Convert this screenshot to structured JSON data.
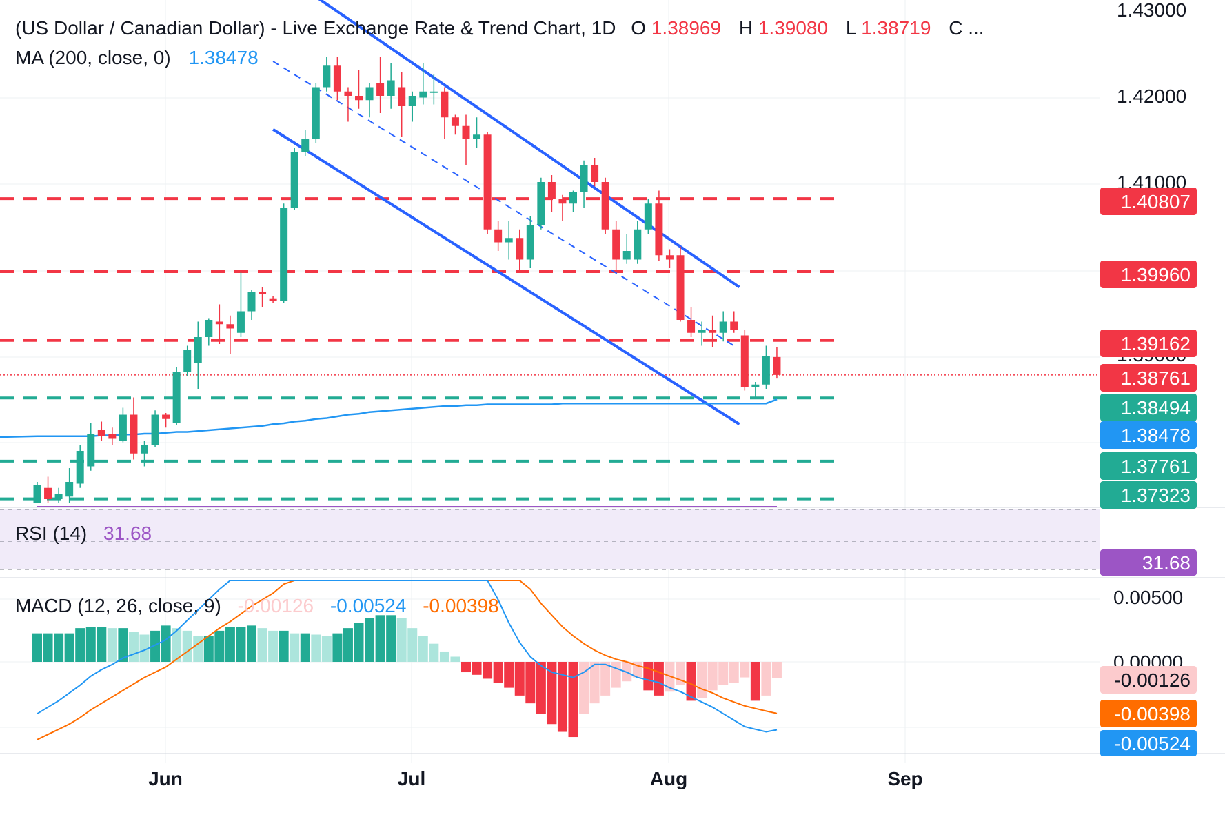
{
  "header": {
    "title": "(US Dollar / Canadian Dollar) - Live Exchange Rate & Trend Chart, 1D",
    "ohlc": [
      {
        "key": "O",
        "value": "1.38969"
      },
      {
        "key": "H",
        "value": "1.39080"
      },
      {
        "key": "L",
        "value": "1.38719"
      },
      {
        "key": "C",
        "value": "..."
      }
    ],
    "ma_label": "MA (200, close, 0)",
    "ma_value": "1.38478"
  },
  "rsi": {
    "label": "RSI (14)",
    "value": "31.68"
  },
  "macd": {
    "label": "MACD (12, 26, close, 9)",
    "histogram": "-0.00126",
    "macd": "-0.00524",
    "signal": "-0.00398"
  },
  "colors": {
    "up": "#22ab94",
    "up_light": "#ace5dc",
    "down": "#f23645",
    "down_light": "#fccbcd",
    "ma": "#2196f3",
    "channel": "#2962ff",
    "rsi": "#9c55c5",
    "rsi_band": "#f1ebf9",
    "macd_line": "#2196f3",
    "signal_line": "#ff6d00",
    "resistance_tag": "#f23645",
    "support_tag": "#22ab94",
    "ma_tag": "#2196f3",
    "rsi_tag": "#9c55c5",
    "macd_hist_tag": "#fccbcd",
    "signal_tag": "#ff6d00",
    "macd_tag": "#2196f3"
  },
  "chart_data": {
    "type": "candlestick",
    "price_axis_ticks": [
      "1.43000",
      "1.42000",
      "1.41000",
      "1.39000"
    ],
    "macd_axis_ticks": [
      "0.00500",
      "0.00000"
    ],
    "x_axis_ticks": [
      "Jun",
      "Jul",
      "Aug",
      "Sep"
    ],
    "price_range": [
      1.373,
      1.43
    ],
    "price_tags": [
      {
        "label": "1.40807",
        "value": 1.40807,
        "kind": "resistance",
        "dashed": true
      },
      {
        "label": "1.39960",
        "value": 1.3996,
        "kind": "resistance",
        "dashed": true
      },
      {
        "label": "1.39162",
        "value": 1.39162,
        "kind": "resistance",
        "dashed": true
      },
      {
        "label": "1.38761",
        "value": 1.38761,
        "kind": "last",
        "dashed": false
      },
      {
        "label": "1.38494",
        "value": 1.38494,
        "kind": "support",
        "dashed": true
      },
      {
        "label": "1.38478",
        "value": 1.38478,
        "kind": "ma",
        "dashed": false
      },
      {
        "label": "1.37761",
        "value": 1.37761,
        "kind": "support",
        "dashed": true
      },
      {
        "label": "1.37323",
        "value": 1.37323,
        "kind": "support",
        "dashed": true
      }
    ],
    "candles": [
      {
        "o": 1.3728,
        "h": 1.3752,
        "l": 1.3718,
        "c": 1.3748
      },
      {
        "o": 1.3745,
        "h": 1.3758,
        "l": 1.3725,
        "c": 1.3732
      },
      {
        "o": 1.3732,
        "h": 1.3745,
        "l": 1.372,
        "c": 1.3738
      },
      {
        "o": 1.3735,
        "h": 1.3768,
        "l": 1.3725,
        "c": 1.3752
      },
      {
        "o": 1.375,
        "h": 1.3795,
        "l": 1.3745,
        "c": 1.3788
      },
      {
        "o": 1.377,
        "h": 1.382,
        "l": 1.3765,
        "c": 1.3808
      },
      {
        "o": 1.3812,
        "h": 1.3822,
        "l": 1.38,
        "c": 1.3805
      },
      {
        "o": 1.3808,
        "h": 1.3815,
        "l": 1.3795,
        "c": 1.3802
      },
      {
        "o": 1.38,
        "h": 1.3838,
        "l": 1.3798,
        "c": 1.383
      },
      {
        "o": 1.383,
        "h": 1.385,
        "l": 1.3778,
        "c": 1.3785
      },
      {
        "o": 1.3785,
        "h": 1.38,
        "l": 1.377,
        "c": 1.3795
      },
      {
        "o": 1.3795,
        "h": 1.3835,
        "l": 1.3792,
        "c": 1.383
      },
      {
        "o": 1.383,
        "h": 1.3832,
        "l": 1.3815,
        "c": 1.3825
      },
      {
        "o": 1.382,
        "h": 1.3885,
        "l": 1.3818,
        "c": 1.388
      },
      {
        "o": 1.388,
        "h": 1.391,
        "l": 1.3875,
        "c": 1.3905
      },
      {
        "o": 1.389,
        "h": 1.3938,
        "l": 1.386,
        "c": 1.392
      },
      {
        "o": 1.392,
        "h": 1.3942,
        "l": 1.391,
        "c": 1.394
      },
      {
        "o": 1.3938,
        "h": 1.3958,
        "l": 1.3912,
        "c": 1.3935
      },
      {
        "o": 1.3935,
        "h": 1.3945,
        "l": 1.39,
        "c": 1.393
      },
      {
        "o": 1.3925,
        "h": 1.3995,
        "l": 1.392,
        "c": 1.395
      },
      {
        "o": 1.395,
        "h": 1.3975,
        "l": 1.394,
        "c": 1.3972
      },
      {
        "o": 1.3972,
        "h": 1.3978,
        "l": 1.3955,
        "c": 1.397
      },
      {
        "o": 1.3965,
        "h": 1.3968,
        "l": 1.396,
        "c": 1.3962
      },
      {
        "o": 1.3962,
        "h": 1.4075,
        "l": 1.396,
        "c": 1.407
      },
      {
        "o": 1.407,
        "h": 1.414,
        "l": 1.4068,
        "c": 1.4135
      },
      {
        "o": 1.4135,
        "h": 1.416,
        "l": 1.413,
        "c": 1.415
      },
      {
        "o": 1.415,
        "h": 1.4215,
        "l": 1.4145,
        "c": 1.421
      },
      {
        "o": 1.421,
        "h": 1.4245,
        "l": 1.4205,
        "c": 1.4235
      },
      {
        "o": 1.4235,
        "h": 1.4245,
        "l": 1.4195,
        "c": 1.4205
      },
      {
        "o": 1.4205,
        "h": 1.421,
        "l": 1.417,
        "c": 1.42
      },
      {
        "o": 1.42,
        "h": 1.423,
        "l": 1.4185,
        "c": 1.4195
      },
      {
        "o": 1.4195,
        "h": 1.4215,
        "l": 1.4175,
        "c": 1.421
      },
      {
        "o": 1.4215,
        "h": 1.4245,
        "l": 1.418,
        "c": 1.42
      },
      {
        "o": 1.42,
        "h": 1.4238,
        "l": 1.4185,
        "c": 1.4218
      },
      {
        "o": 1.421,
        "h": 1.4228,
        "l": 1.4152,
        "c": 1.4188
      },
      {
        "o": 1.4188,
        "h": 1.4205,
        "l": 1.417,
        "c": 1.42
      },
      {
        "o": 1.4198,
        "h": 1.4238,
        "l": 1.419,
        "c": 1.4205
      },
      {
        "o": 1.4205,
        "h": 1.4225,
        "l": 1.419,
        "c": 1.4205
      },
      {
        "o": 1.4205,
        "h": 1.421,
        "l": 1.415,
        "c": 1.4175
      },
      {
        "o": 1.4175,
        "h": 1.4178,
        "l": 1.4155,
        "c": 1.4165
      },
      {
        "o": 1.4165,
        "h": 1.4178,
        "l": 1.412,
        "c": 1.415
      },
      {
        "o": 1.415,
        "h": 1.4175,
        "l": 1.414,
        "c": 1.4155
      },
      {
        "o": 1.4155,
        "h": 1.4158,
        "l": 1.404,
        "c": 1.4045
      },
      {
        "o": 1.4045,
        "h": 1.4055,
        "l": 1.402,
        "c": 1.403
      },
      {
        "o": 1.403,
        "h": 1.4055,
        "l": 1.401,
        "c": 1.4035
      },
      {
        "o": 1.4035,
        "h": 1.4045,
        "l": 1.3995,
        "c": 1.401
      },
      {
        "o": 1.401,
        "h": 1.406,
        "l": 1.4,
        "c": 1.405
      },
      {
        "o": 1.405,
        "h": 1.4105,
        "l": 1.4045,
        "c": 1.41
      },
      {
        "o": 1.41,
        "h": 1.4108,
        "l": 1.4065,
        "c": 1.408
      },
      {
        "o": 1.408,
        "h": 1.4085,
        "l": 1.4055,
        "c": 1.4075
      },
      {
        "o": 1.4075,
        "h": 1.409,
        "l": 1.4065,
        "c": 1.4088
      },
      {
        "o": 1.4088,
        "h": 1.4125,
        "l": 1.407,
        "c": 1.412
      },
      {
        "o": 1.412,
        "h": 1.4128,
        "l": 1.4095,
        "c": 1.41
      },
      {
        "o": 1.41,
        "h": 1.4105,
        "l": 1.404,
        "c": 1.4045
      },
      {
        "o": 1.4045,
        "h": 1.4055,
        "l": 1.3995,
        "c": 1.401
      },
      {
        "o": 1.401,
        "h": 1.404,
        "l": 1.4005,
        "c": 1.402
      },
      {
        "o": 1.401,
        "h": 1.4055,
        "l": 1.4005,
        "c": 1.4045
      },
      {
        "o": 1.4045,
        "h": 1.408,
        "l": 1.404,
        "c": 1.4075
      },
      {
        "o": 1.4075,
        "h": 1.409,
        "l": 1.4008,
        "c": 1.4015
      },
      {
        "o": 1.4015,
        "h": 1.4022,
        "l": 1.4,
        "c": 1.401
      },
      {
        "o": 1.4015,
        "h": 1.4025,
        "l": 1.3938,
        "c": 1.394
      },
      {
        "o": 1.394,
        "h": 1.3955,
        "l": 1.392,
        "c": 1.3925
      },
      {
        "o": 1.3925,
        "h": 1.3938,
        "l": 1.391,
        "c": 1.3928
      },
      {
        "o": 1.3928,
        "h": 1.3945,
        "l": 1.3908,
        "c": 1.3925
      },
      {
        "o": 1.3925,
        "h": 1.395,
        "l": 1.3915,
        "c": 1.3938
      },
      {
        "o": 1.3938,
        "h": 1.395,
        "l": 1.3925,
        "c": 1.3928
      },
      {
        "o": 1.3922,
        "h": 1.3928,
        "l": 1.3858,
        "c": 1.3862
      },
      {
        "o": 1.3862,
        "h": 1.3868,
        "l": 1.385,
        "c": 1.3865
      },
      {
        "o": 1.3865,
        "h": 1.391,
        "l": 1.386,
        "c": 1.3898
      },
      {
        "o": 1.38969,
        "h": 1.3908,
        "l": 1.38719,
        "c": 1.38761
      }
    ],
    "ma200": [
      1.3805,
      1.3805,
      1.3805,
      1.3805,
      1.3805,
      1.3805,
      1.3806,
      1.3806,
      1.3807,
      1.3807,
      1.3808,
      1.3808,
      1.3809,
      1.381,
      1.381,
      1.3811,
      1.3812,
      1.3813,
      1.3814,
      1.3815,
      1.3816,
      1.3817,
      1.3819,
      1.382,
      1.3822,
      1.3823,
      1.3825,
      1.3826,
      1.3828,
      1.383,
      1.3831,
      1.3833,
      1.3834,
      1.3835,
      1.3836,
      1.3837,
      1.3838,
      1.3839,
      1.384,
      1.384,
      1.3841,
      1.3841,
      1.3842,
      1.3842,
      1.3842,
      1.3842,
      1.3842,
      1.3842,
      1.3842,
      1.3843,
      1.3843,
      1.3843,
      1.3843,
      1.3843,
      1.3843,
      1.3843,
      1.3843,
      1.3843,
      1.3843,
      1.3843,
      1.3843,
      1.3843,
      1.3843,
      1.3843,
      1.3843,
      1.3843,
      1.3843,
      1.3843,
      1.3843,
      1.38478
    ],
    "rsi_values": [
      72,
      71,
      70,
      71,
      72,
      73,
      72,
      72,
      73,
      71,
      71,
      72,
      71,
      73,
      74,
      74,
      75,
      75,
      74,
      74,
      74,
      75,
      75,
      78,
      82,
      83,
      85,
      87,
      86,
      85,
      85,
      86,
      85,
      85,
      84,
      74,
      74,
      75,
      74,
      72,
      69,
      67,
      64,
      44,
      43,
      42,
      40,
      46,
      50,
      48,
      46,
      47,
      49,
      50,
      48,
      42,
      40,
      42,
      44,
      45,
      42,
      36,
      34,
      35,
      33,
      34,
      33,
      30,
      30,
      31.68
    ],
    "macd_values": [
      -0.004,
      -0.0035,
      -0.003,
      -0.0024,
      -0.0018,
      -0.0011,
      -0.0006,
      -0.0002,
      0.0003,
      0.0006,
      0.0009,
      0.0013,
      0.0017,
      0.0024,
      0.0032,
      0.004,
      0.0048,
      0.0056,
      0.0063,
      0.007,
      0.0076,
      0.0082,
      0.0086,
      0.0096,
      0.011,
      0.0122,
      0.0136,
      0.015,
      0.0158,
      0.0162,
      0.0165,
      0.0166,
      0.0166,
      0.0164,
      0.016,
      0.0156,
      0.015,
      0.014,
      0.0128,
      0.0115,
      0.01,
      0.0087,
      0.0068,
      0.0048,
      0.003,
      0.0015,
      0.0004,
      -0.0003,
      -0.0008,
      -0.001,
      -0.0012,
      -0.0008,
      -0.0002,
      -0.0002,
      -0.0005,
      -0.0008,
      -0.0012,
      -0.0014,
      -0.0016,
      -0.002,
      -0.0023,
      -0.0027,
      -0.0031,
      -0.0035,
      -0.004,
      -0.0045,
      -0.005,
      -0.0052,
      -0.0054,
      -0.00524
    ],
    "signal_values": [
      -0.006,
      -0.0056,
      -0.0052,
      -0.0048,
      -0.0043,
      -0.0037,
      -0.0032,
      -0.0027,
      -0.0022,
      -0.0017,
      -0.0012,
      -0.0008,
      -0.0004,
      0.0002,
      0.0008,
      0.0014,
      0.002,
      0.0026,
      0.0031,
      0.0037,
      0.0043,
      0.0048,
      0.0053,
      0.006,
      0.0068,
      0.0076,
      0.0084,
      0.0092,
      0.01,
      0.0108,
      0.0116,
      0.0124,
      0.0131,
      0.0137,
      0.0142,
      0.0146,
      0.0148,
      0.0148,
      0.0145,
      0.014,
      0.0132,
      0.0122,
      0.011,
      0.0097,
      0.0082,
      0.0068,
      0.0056,
      0.0045,
      0.0036,
      0.0027,
      0.002,
      0.0014,
      0.0009,
      0.0005,
      0.0002,
      0.0,
      -0.0003,
      -0.0005,
      -0.0008,
      -0.0011,
      -0.0014,
      -0.0017,
      -0.0021,
      -0.0024,
      -0.0028,
      -0.0031,
      -0.0034,
      -0.0036,
      -0.0038,
      -0.00398
    ],
    "macd_hist": [
      0.0022,
      0.0022,
      0.0022,
      0.0022,
      0.0026,
      0.0027,
      0.0027,
      0.0026,
      0.0026,
      0.0023,
      0.0021,
      0.0024,
      0.0028,
      0.0026,
      0.0024,
      0.002,
      0.002,
      0.0024,
      0.0027,
      0.0027,
      0.0028,
      0.0026,
      0.0024,
      0.0024,
      0.0022,
      0.0022,
      0.0021,
      0.002,
      0.0022,
      0.0026,
      0.003,
      0.0034,
      0.0036,
      0.0036,
      0.0034,
      0.0026,
      0.002,
      0.0014,
      0.0008,
      0.0004,
      -0.0008,
      -0.001,
      -0.0013,
      -0.0016,
      -0.002,
      -0.0026,
      -0.0032,
      -0.004,
      -0.0048,
      -0.0054,
      -0.0058,
      -0.004,
      -0.0032,
      -0.0026,
      -0.002,
      -0.0015,
      -0.0012,
      -0.0022,
      -0.0026,
      -0.0023,
      -0.0018,
      -0.003,
      -0.0028,
      -0.0022,
      -0.0018,
      -0.0016,
      -0.0012,
      -0.003,
      -0.0026,
      -0.00126
    ]
  }
}
